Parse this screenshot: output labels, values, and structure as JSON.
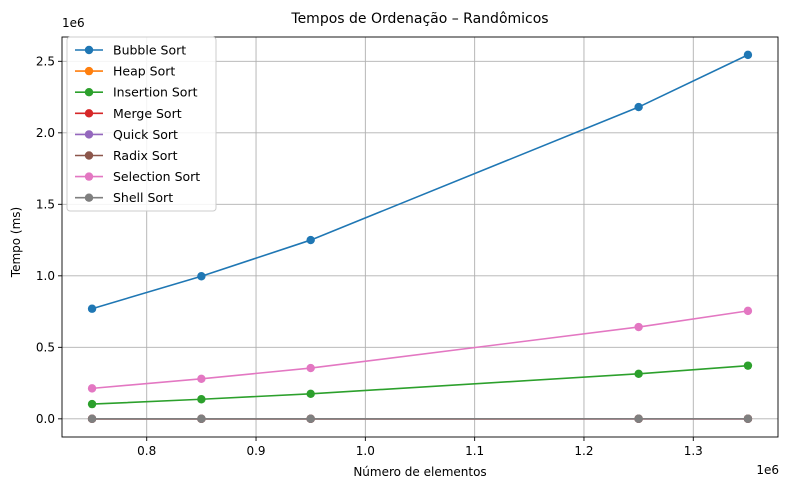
{
  "chart_data": {
    "type": "line",
    "title": "Tempos de Ordenação – Randômicos",
    "xlabel": "Número de elementos",
    "ylabel": "Tempo (ms)",
    "x_scale_label": "1e6",
    "y_scale_label": "1e6",
    "x": [
      750000,
      850000,
      950000,
      1250000,
      1350000
    ],
    "xlim": [
      722500,
      1377500
    ],
    "ylim": [
      -127000,
      2670000
    ],
    "x_ticks": [
      800000,
      900000,
      1000000,
      1100000,
      1200000,
      1300000
    ],
    "x_tick_labels": [
      "0.8",
      "0.9",
      "1.0",
      "1.1",
      "1.2",
      "1.3"
    ],
    "y_ticks": [
      0,
      500000,
      1000000,
      1500000,
      2000000,
      2500000
    ],
    "y_tick_labels": [
      "0.0",
      "0.5",
      "1.0",
      "1.5",
      "2.0",
      "2.5"
    ],
    "grid": true,
    "legend_position": "top-left",
    "series": [
      {
        "name": "Bubble Sort",
        "color": "#1f77b4",
        "values": [
          770000,
          997000,
          1250000,
          2180000,
          2545000
        ]
      },
      {
        "name": "Heap Sort",
        "color": "#ff7f0e",
        "values": [
          300,
          350,
          400,
          520,
          560
        ]
      },
      {
        "name": "Insertion Sort",
        "color": "#2ca02c",
        "values": [
          103000,
          137000,
          175000,
          315000,
          372000
        ]
      },
      {
        "name": "Merge Sort",
        "color": "#d62728",
        "values": [
          250,
          290,
          330,
          430,
          460
        ]
      },
      {
        "name": "Quick Sort",
        "color": "#9467bd",
        "values": [
          150,
          170,
          190,
          250,
          270
        ]
      },
      {
        "name": "Radix Sort",
        "color": "#8c564b",
        "values": [
          100,
          110,
          120,
          160,
          170
        ]
      },
      {
        "name": "Selection Sort",
        "color": "#e377c2",
        "values": [
          213000,
          280000,
          355000,
          642000,
          755000
        ]
      },
      {
        "name": "Shell Sort",
        "color": "#7f7f7f",
        "values": [
          350,
          400,
          450,
          600,
          650
        ]
      }
    ]
  }
}
